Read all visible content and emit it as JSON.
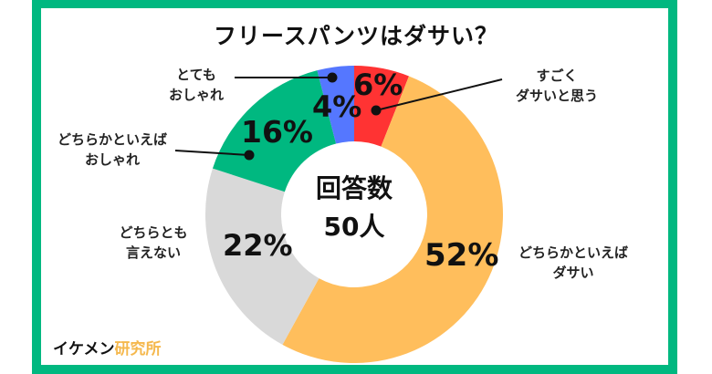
{
  "title": "フリースパンツはダサい？",
  "center": {
    "line1": "回答数",
    "line2": "50人"
  },
  "brand": {
    "part1": "イケメン",
    "part2": "研究所"
  },
  "colors": {
    "frame": "#00b880",
    "sugoku_dasai": "#ff3333",
    "dochiraka_dasai": "#ffbe5c",
    "dochiratomo": "#d9d9d9",
    "dochiraka_oshare": "#00b880",
    "totemo_oshare": "#5577ff"
  },
  "labels": {
    "sugoku_dasai": {
      "line1": "すごく",
      "line2": "ダサいと思う",
      "pct": "6%"
    },
    "dochiraka_dasai": {
      "line1": "どちらかといえば",
      "line2": "ダサい",
      "pct": "52%"
    },
    "dochiratomo": {
      "line1": "どちらとも",
      "line2": "言えない",
      "pct": "22%"
    },
    "dochiraka_oshare": {
      "line1": "どちらかといえば",
      "line2": "おしゃれ",
      "pct": "16%"
    },
    "totemo_oshare": {
      "line1": "とても",
      "line2": "おしゃれ",
      "pct": "4%"
    }
  },
  "chart_data": {
    "type": "pie",
    "subtype": "donut",
    "title": "フリースパンツはダサい？",
    "center_text": "回答数 50人",
    "categories": [
      "すごくダサいと思う",
      "どちらかといえばダサい",
      "どちらとも言えない",
      "どちらかといえばおしゃれ",
      "とてもおしゃれ"
    ],
    "values": [
      6,
      52,
      22,
      16,
      4
    ],
    "unit": "%",
    "colors": [
      "#ff3333",
      "#ffbe5c",
      "#d9d9d9",
      "#00b880",
      "#5577ff"
    ],
    "start_angle": "12 o'clock, clockwise",
    "legend": "none (callout labels)",
    "respondents": 50
  }
}
